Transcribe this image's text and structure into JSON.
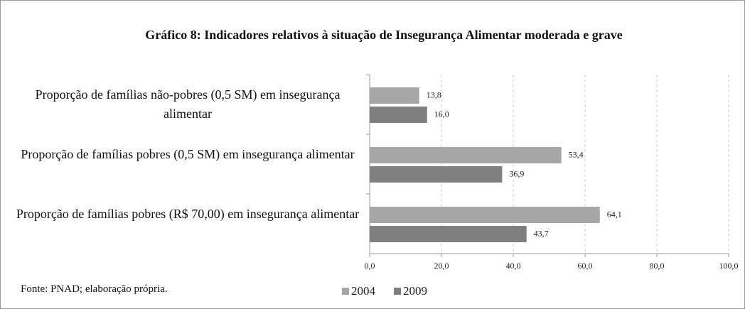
{
  "chart_data": {
    "type": "bar",
    "orientation": "horizontal",
    "title": "Gráfico 8: Indicadores relativos à situação de Insegurança Alimentar moderada e grave",
    "categories": [
      "Proporção de famílias não-pobres (0,5 SM) em insegurança alimentar",
      "Proporção de famílias pobres (0,5 SM) em insegurança alimentar",
      "Proporção de famílias pobres (R$ 70,00) em insegurança alimentar"
    ],
    "series": [
      {
        "name": "2004",
        "color": "#a6a6a6",
        "values": [
          13.8,
          53.4,
          64.1
        ],
        "value_labels": [
          "13,8",
          "53,4",
          "64,1"
        ]
      },
      {
        "name": "2009",
        "color": "#7f7f7f",
        "values": [
          16.0,
          36.9,
          43.7
        ],
        "value_labels": [
          "16,0",
          "36,9",
          "43,7"
        ]
      }
    ],
    "xlim": [
      0,
      100
    ],
    "xticks": [
      {
        "value": 0,
        "label": "0,0"
      },
      {
        "value": 20,
        "label": "20,0"
      },
      {
        "value": 40,
        "label": "40,0"
      },
      {
        "value": 60,
        "label": "60,0"
      },
      {
        "value": 80,
        "label": "80,0"
      },
      {
        "value": 100,
        "label": "100,0"
      }
    ],
    "grid": true,
    "legend": "bottom",
    "note": "Fonte: PNAD; elaboração própria."
  }
}
